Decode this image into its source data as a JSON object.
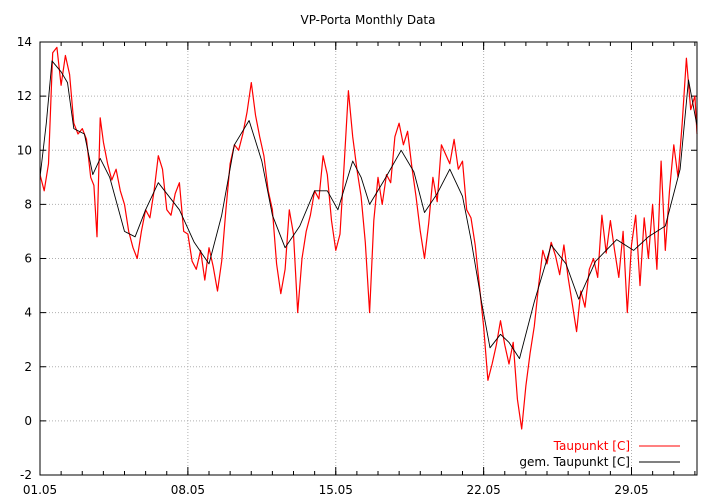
{
  "chart_data": {
    "type": "line",
    "title": "VP-Porta Monthly Data",
    "xlabel": "",
    "ylabel": "",
    "x_unit": "days since 01.05",
    "xlim": [
      0,
      31.1
    ],
    "ylim": [
      -2,
      14
    ],
    "yticks": [
      -2,
      0,
      2,
      4,
      6,
      8,
      10,
      12,
      14
    ],
    "xticks": [
      {
        "day": 0,
        "label": "01.05"
      },
      {
        "day": 7,
        "label": "08.05"
      },
      {
        "day": 14,
        "label": "15.05"
      },
      {
        "day": 21,
        "label": "22.05"
      },
      {
        "day": 28,
        "label": "29.05"
      }
    ],
    "grid": true,
    "legend_position": "bottom-right",
    "series": [
      {
        "name": "Taupunkt [C]",
        "color": "#ff0000",
        "points": [
          [
            0,
            9.1
          ],
          [
            0.2,
            8.5
          ],
          [
            0.4,
            9.5
          ],
          [
            0.6,
            13.6
          ],
          [
            0.8,
            13.8
          ],
          [
            1.0,
            12.4
          ],
          [
            1.2,
            13.5
          ],
          [
            1.4,
            12.8
          ],
          [
            1.6,
            11.0
          ],
          [
            1.8,
            10.6
          ],
          [
            2.0,
            10.8
          ],
          [
            2.2,
            10.4
          ],
          [
            2.4,
            9.0
          ],
          [
            2.55,
            8.7
          ],
          [
            2.7,
            6.8
          ],
          [
            2.85,
            11.2
          ],
          [
            3.0,
            10.3
          ],
          [
            3.2,
            9.5
          ],
          [
            3.4,
            8.9
          ],
          [
            3.6,
            9.3
          ],
          [
            3.8,
            8.5
          ],
          [
            4.0,
            8.0
          ],
          [
            4.2,
            7.0
          ],
          [
            4.4,
            6.4
          ],
          [
            4.6,
            6.0
          ],
          [
            4.8,
            7.0
          ],
          [
            5.0,
            7.8
          ],
          [
            5.2,
            7.5
          ],
          [
            5.4,
            8.5
          ],
          [
            5.6,
            9.8
          ],
          [
            5.8,
            9.3
          ],
          [
            6.0,
            7.8
          ],
          [
            6.2,
            7.6
          ],
          [
            6.4,
            8.4
          ],
          [
            6.6,
            8.8
          ],
          [
            6.8,
            7.0
          ],
          [
            7.0,
            6.9
          ],
          [
            7.2,
            5.9
          ],
          [
            7.4,
            5.6
          ],
          [
            7.6,
            6.3
          ],
          [
            7.8,
            5.2
          ],
          [
            8.0,
            6.4
          ],
          [
            8.2,
            5.7
          ],
          [
            8.4,
            4.8
          ],
          [
            8.6,
            5.9
          ],
          [
            8.8,
            7.8
          ],
          [
            9.0,
            9.5
          ],
          [
            9.2,
            10.2
          ],
          [
            9.4,
            10.0
          ],
          [
            9.6,
            10.6
          ],
          [
            9.8,
            11.4
          ],
          [
            10.0,
            12.5
          ],
          [
            10.2,
            11.3
          ],
          [
            10.4,
            10.5
          ],
          [
            10.6,
            9.8
          ],
          [
            10.8,
            8.5
          ],
          [
            11.0,
            7.8
          ],
          [
            11.2,
            5.8
          ],
          [
            11.4,
            4.7
          ],
          [
            11.6,
            5.6
          ],
          [
            11.8,
            7.8
          ],
          [
            12.0,
            6.9
          ],
          [
            12.2,
            4.0
          ],
          [
            12.4,
            6.0
          ],
          [
            12.6,
            7.0
          ],
          [
            12.8,
            7.6
          ],
          [
            13.0,
            8.5
          ],
          [
            13.2,
            8.2
          ],
          [
            13.4,
            9.8
          ],
          [
            13.6,
            9.1
          ],
          [
            13.8,
            7.4
          ],
          [
            14.0,
            6.3
          ],
          [
            14.2,
            6.9
          ],
          [
            14.4,
            9.5
          ],
          [
            14.6,
            12.2
          ],
          [
            14.8,
            10.5
          ],
          [
            15.0,
            9.3
          ],
          [
            15.2,
            8.3
          ],
          [
            15.4,
            6.6
          ],
          [
            15.6,
            4.0
          ],
          [
            15.8,
            7.4
          ],
          [
            16.0,
            9.0
          ],
          [
            16.2,
            8.0
          ],
          [
            16.4,
            9.1
          ],
          [
            16.6,
            8.8
          ],
          [
            16.8,
            10.5
          ],
          [
            17.0,
            11.0
          ],
          [
            17.2,
            10.2
          ],
          [
            17.4,
            10.7
          ],
          [
            17.6,
            9.4
          ],
          [
            17.8,
            8.3
          ],
          [
            18.0,
            7.0
          ],
          [
            18.2,
            6.0
          ],
          [
            18.4,
            7.3
          ],
          [
            18.6,
            9.0
          ],
          [
            18.8,
            8.1
          ],
          [
            19.0,
            10.2
          ],
          [
            19.4,
            9.5
          ],
          [
            19.6,
            10.4
          ],
          [
            19.8,
            9.3
          ],
          [
            20.0,
            9.6
          ],
          [
            20.2,
            7.8
          ],
          [
            20.4,
            7.5
          ],
          [
            20.6,
            6.5
          ],
          [
            20.8,
            5.0
          ],
          [
            21.0,
            3.5
          ],
          [
            21.2,
            1.5
          ],
          [
            21.4,
            2.1
          ],
          [
            21.6,
            2.8
          ],
          [
            21.8,
            3.7
          ],
          [
            22.0,
            2.8
          ],
          [
            22.2,
            2.1
          ],
          [
            22.4,
            2.9
          ],
          [
            22.6,
            0.8
          ],
          [
            22.8,
            -0.3
          ],
          [
            23.0,
            1.3
          ],
          [
            23.2,
            2.5
          ],
          [
            23.4,
            3.5
          ],
          [
            23.6,
            5.0
          ],
          [
            23.8,
            6.3
          ],
          [
            24.0,
            5.8
          ],
          [
            24.2,
            6.6
          ],
          [
            24.4,
            6.1
          ],
          [
            24.6,
            5.4
          ],
          [
            24.8,
            6.5
          ],
          [
            25.0,
            5.3
          ],
          [
            25.2,
            4.3
          ],
          [
            25.4,
            3.3
          ],
          [
            25.6,
            4.8
          ],
          [
            25.8,
            4.2
          ],
          [
            26.0,
            5.6
          ],
          [
            26.2,
            6.0
          ],
          [
            26.4,
            5.3
          ],
          [
            26.6,
            7.6
          ],
          [
            26.8,
            6.2
          ],
          [
            27.0,
            7.4
          ],
          [
            27.2,
            6.3
          ],
          [
            27.4,
            5.3
          ],
          [
            27.6,
            7.0
          ],
          [
            27.8,
            4.0
          ],
          [
            28.0,
            6.5
          ],
          [
            28.2,
            7.6
          ],
          [
            28.4,
            5.0
          ],
          [
            28.6,
            7.5
          ],
          [
            28.8,
            6.0
          ],
          [
            29.0,
            8.0
          ],
          [
            29.2,
            5.6
          ],
          [
            29.4,
            9.6
          ],
          [
            29.6,
            6.3
          ],
          [
            29.8,
            8.5
          ],
          [
            30.0,
            10.2
          ],
          [
            30.2,
            9.0
          ],
          [
            30.4,
            11.0
          ],
          [
            30.6,
            13.4
          ],
          [
            30.8,
            11.5
          ],
          [
            31.0,
            12.0
          ],
          [
            31.1,
            10.6
          ]
        ]
      },
      {
        "name": "gem. Taupunkt [C]",
        "color": "#000000",
        "points": [
          [
            0,
            9.0
          ],
          [
            0.3,
            11.0
          ],
          [
            0.57,
            13.3
          ],
          [
            1.0,
            12.9
          ],
          [
            1.3,
            12.5
          ],
          [
            1.6,
            10.8
          ],
          [
            2.1,
            10.6
          ],
          [
            2.5,
            9.1
          ],
          [
            2.85,
            9.7
          ],
          [
            3.3,
            9.0
          ],
          [
            4.0,
            7.0
          ],
          [
            4.5,
            6.8
          ],
          [
            5.0,
            7.8
          ],
          [
            5.6,
            8.8
          ],
          [
            6.1,
            8.3
          ],
          [
            6.6,
            7.8
          ],
          [
            7.3,
            6.6
          ],
          [
            8.0,
            5.8
          ],
          [
            8.6,
            7.6
          ],
          [
            9.2,
            10.2
          ],
          [
            9.9,
            11.1
          ],
          [
            10.5,
            9.6
          ],
          [
            11.0,
            7.6
          ],
          [
            11.6,
            6.4
          ],
          [
            12.3,
            7.2
          ],
          [
            13.0,
            8.5
          ],
          [
            13.6,
            8.5
          ],
          [
            14.1,
            7.8
          ],
          [
            14.8,
            9.6
          ],
          [
            15.2,
            9.0
          ],
          [
            15.6,
            8.0
          ],
          [
            16.3,
            8.9
          ],
          [
            17.1,
            10.0
          ],
          [
            17.7,
            9.2
          ],
          [
            18.2,
            7.7
          ],
          [
            18.8,
            8.4
          ],
          [
            19.4,
            9.3
          ],
          [
            20.0,
            8.3
          ],
          [
            20.4,
            6.7
          ],
          [
            20.9,
            4.4
          ],
          [
            21.3,
            2.7
          ],
          [
            21.8,
            3.2
          ],
          [
            22.2,
            2.9
          ],
          [
            22.7,
            2.3
          ],
          [
            23.4,
            4.4
          ],
          [
            24.2,
            6.5
          ],
          [
            24.9,
            5.8
          ],
          [
            25.5,
            4.5
          ],
          [
            26.3,
            5.9
          ],
          [
            27.3,
            6.7
          ],
          [
            28.1,
            6.3
          ],
          [
            28.8,
            6.8
          ],
          [
            29.6,
            7.2
          ],
          [
            30.3,
            9.3
          ],
          [
            30.7,
            12.6
          ],
          [
            31.1,
            10.9
          ]
        ]
      }
    ]
  }
}
